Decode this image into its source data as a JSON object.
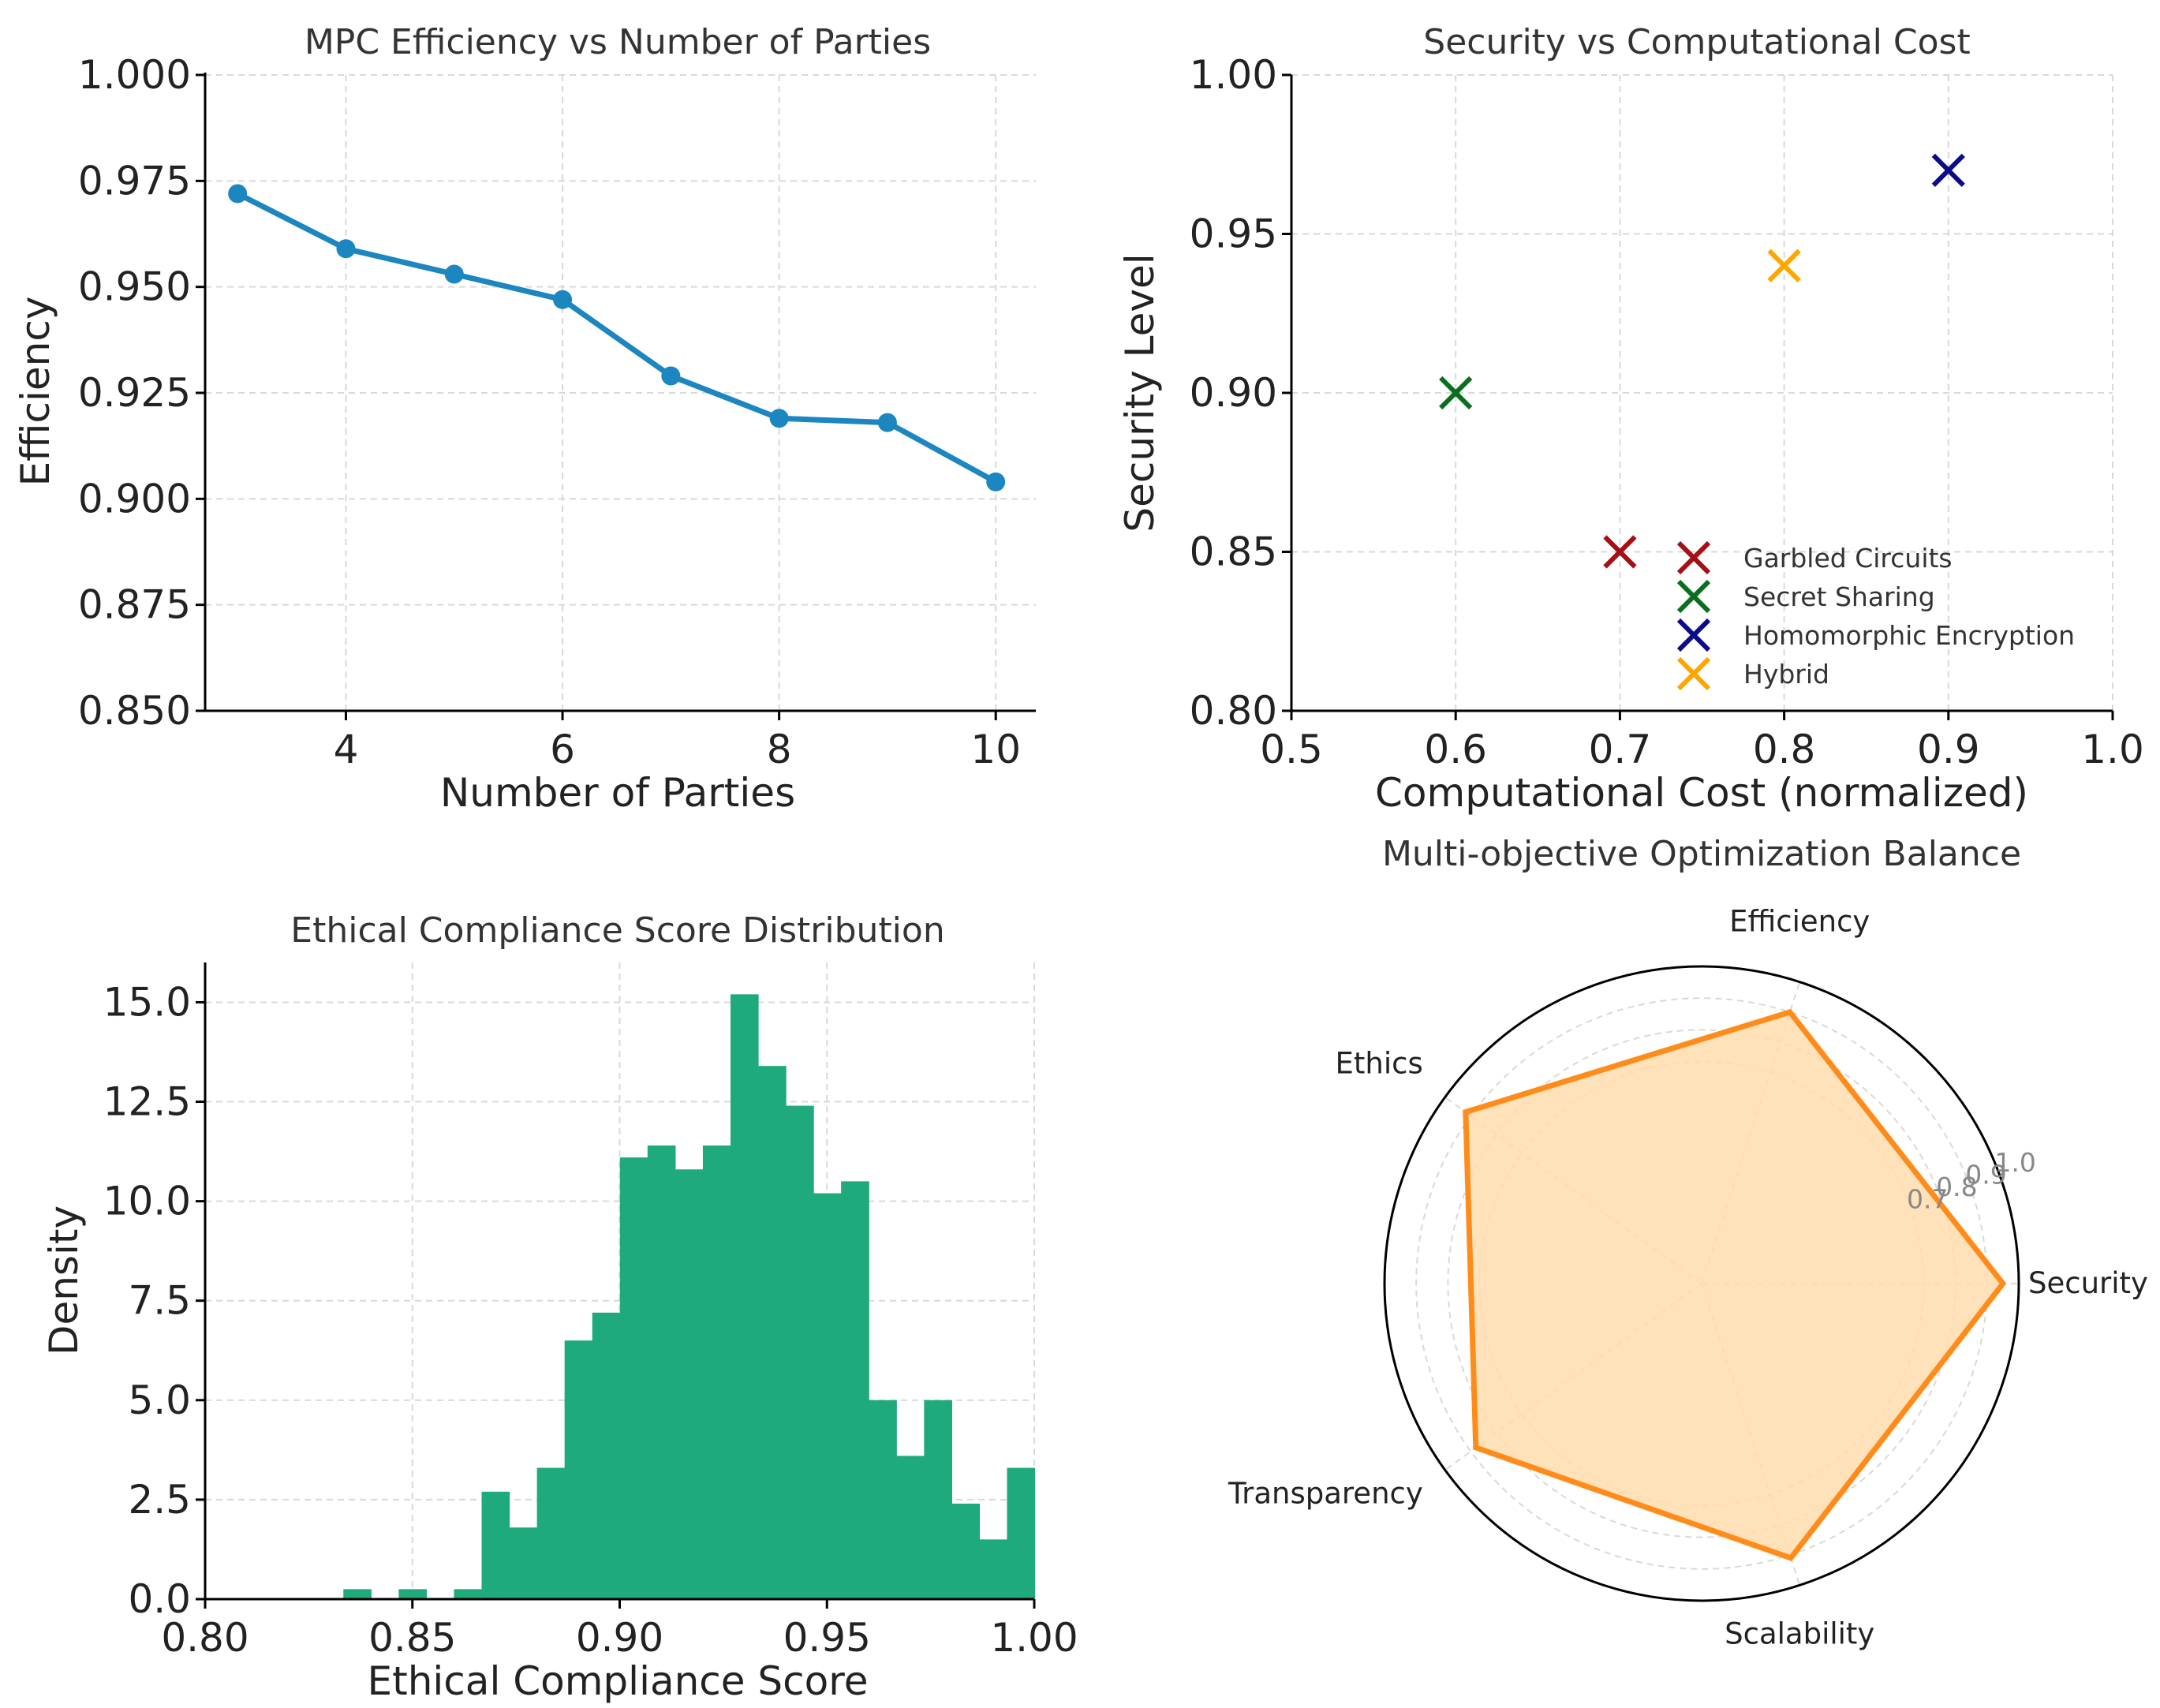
{
  "colors": {
    "line": "#1c86c0",
    "hist": "#1faa7e",
    "radar_line": "#ff8c1a",
    "radar_fill": "#ffdcae",
    "grid": "#d9d9d9"
  },
  "chart_data": [
    {
      "type": "line",
      "title": "MPC Efficiency vs Number of Parties",
      "xlabel": "Number of Parties",
      "ylabel": "Efficiency",
      "x": [
        3,
        4,
        5,
        6,
        7,
        8,
        9,
        10
      ],
      "y": [
        0.972,
        0.959,
        0.953,
        0.947,
        0.929,
        0.919,
        0.918,
        0.904
      ],
      "xlim": [
        2.7,
        10.37
      ],
      "ylim": [
        0.85,
        1.0
      ],
      "xticks": [
        "4",
        "6",
        "8",
        "10"
      ],
      "yticks": [
        "0.850",
        "0.875",
        "0.900",
        "0.925",
        "0.950",
        "0.975",
        "1.000"
      ],
      "grid": true,
      "marker": "circle"
    },
    {
      "type": "scatter",
      "title": "Security vs Computational Cost",
      "xlabel": "Computational Cost (normalized)",
      "ylabel": "Security Level",
      "xlim": [
        0.5,
        1.0
      ],
      "ylim": [
        0.8,
        1.0
      ],
      "xticks": [
        "0.5",
        "0.6",
        "0.7",
        "0.8",
        "0.9",
        "1.0"
      ],
      "yticks": [
        "0.80",
        "0.85",
        "0.90",
        "0.95",
        "1.00"
      ],
      "grid": true,
      "marker": "x",
      "legend_position": "lower-right",
      "series": [
        {
          "name": "Garbled Circuits",
          "x": 0.7,
          "y": 0.85,
          "color": "#a50f15"
        },
        {
          "name": "Secret Sharing",
          "x": 0.6,
          "y": 0.9,
          "color": "#0a6e1e"
        },
        {
          "name": "Homomorphic Encryption",
          "x": 0.9,
          "y": 0.97,
          "color": "#0b0b8c"
        },
        {
          "name": "Hybrid",
          "x": 0.8,
          "y": 0.94,
          "color": "#ffa500"
        }
      ]
    },
    {
      "type": "bar",
      "subtype": "histogram",
      "title": "Ethical Compliance Score Distribution",
      "xlabel": "Ethical Compliance Score",
      "ylabel": "Density",
      "xlim": [
        0.8,
        1.0
      ],
      "ylim": [
        0,
        16
      ],
      "xticks": [
        "0.80",
        "0.85",
        "0.90",
        "0.95",
        "1.00"
      ],
      "yticks": [
        "0.0",
        "2.5",
        "5.0",
        "7.5",
        "10.0",
        "12.5",
        "15.0"
      ],
      "grid": true,
      "bin_start": 0.8,
      "bin_width": 0.00667,
      "values": [
        0,
        0,
        0,
        0,
        0,
        0.25,
        0,
        0.25,
        0,
        0.25,
        2.7,
        1.8,
        3.3,
        6.5,
        7.2,
        11.1,
        11.4,
        10.8,
        11.4,
        15.2,
        13.4,
        12.4,
        10.2,
        10.5,
        5.0,
        3.6,
        5.0,
        2.4,
        1.5,
        3.3
      ]
    },
    {
      "type": "radar",
      "title": "Multi-objective Optimization Balance",
      "axes": [
        "Security",
        "Efficiency",
        "Ethics",
        "Transparency",
        "Scalability"
      ],
      "values": [
        0.95,
        0.9,
        0.92,
        0.88,
        0.91
      ],
      "rlim": [
        0.0,
        1.0
      ],
      "rticks": [
        "0.7",
        "0.8",
        "0.9",
        "1.0"
      ]
    }
  ]
}
